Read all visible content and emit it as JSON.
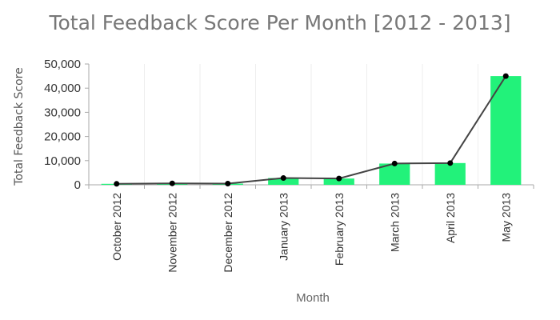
{
  "chart_data": {
    "type": "bar",
    "title": "Total Feedback Score Per Month [2012 - 2013]",
    "xlabel": "Month",
    "ylabel": "Total Feedback Score",
    "categories": [
      "October 2012",
      "November 2012",
      "December 2012",
      "January 2013",
      "February 2013",
      "March 2013",
      "April 2013",
      "May 2013"
    ],
    "series": [
      {
        "type": "bar",
        "values": [
          400,
          600,
          500,
          2800,
          2600,
          8800,
          9000,
          45000
        ],
        "color": "#22f27a"
      },
      {
        "type": "line",
        "values": [
          400,
          600,
          500,
          2800,
          2600,
          8800,
          9000,
          45000
        ],
        "color": "#444444",
        "marker_color": "#000000"
      }
    ],
    "ylim": [
      0,
      50000
    ],
    "yticks": [
      0,
      10000,
      20000,
      30000,
      40000,
      50000
    ],
    "ytick_labels": [
      "0",
      "10,000",
      "20,000",
      "30,000",
      "40,000",
      "50,000"
    ],
    "grid": {
      "vertical": true,
      "horizontal": false
    },
    "colors": {
      "grid": "#eeeeee",
      "axis": "#aaaaaa"
    }
  }
}
